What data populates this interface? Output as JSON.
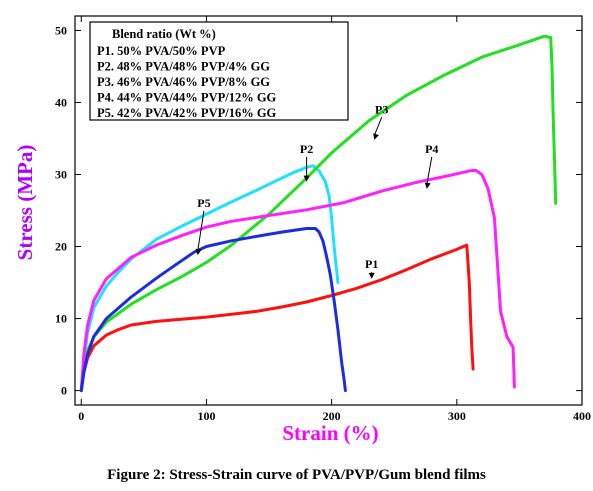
{
  "caption": "Figure 2: Stress-Strain curve of PVA/PVP/Gum blend films",
  "chart_data": {
    "type": "line",
    "xlabel": "Strain (%)",
    "ylabel": "Stress (MPa)",
    "xlabel_color": "#ff00ff",
    "ylabel_color": "#b000ff",
    "xlim": [
      -5,
      400
    ],
    "ylim": [
      -2,
      52
    ],
    "xticks": [
      0,
      100,
      200,
      300,
      400
    ],
    "yticks": [
      0,
      10,
      20,
      30,
      40,
      50
    ],
    "grid": false,
    "legend": {
      "title": "Blend ratio (Wt %)",
      "placement": "top-left",
      "entries": [
        "P1. 50% PVA/50% PVP",
        "P2. 48% PVA/48% PVP/4% GG",
        "P3. 46% PVA/46% PVP/8% GG",
        "P4. 44% PVA/44% PVP/12% GG",
        "P5. 42% PVA/42% PVP/16% GG"
      ]
    },
    "series": [
      {
        "name": "P1",
        "color": "#ff1010",
        "label_at": [
          232,
          17
        ],
        "arrow_to": [
          232,
          15.5
        ],
        "x": [
          0,
          2,
          5,
          10,
          20,
          30,
          40,
          60,
          80,
          100,
          120,
          140,
          160,
          180,
          200,
          220,
          240,
          260,
          280,
          300,
          308,
          310,
          311,
          312,
          313
        ],
        "y": [
          0,
          2.5,
          4.5,
          6.2,
          7.7,
          8.5,
          9.1,
          9.6,
          9.9,
          10.2,
          10.6,
          11.0,
          11.6,
          12.3,
          13.2,
          14.2,
          15.4,
          16.8,
          18.3,
          19.6,
          20.2,
          15,
          10,
          6,
          3
        ]
      },
      {
        "name": "P2",
        "color": "#20e0ff",
        "label_at": [
          180,
          33
        ],
        "arrow_to": [
          180,
          29
        ],
        "x": [
          0,
          2,
          5,
          10,
          20,
          30,
          40,
          60,
          80,
          100,
          120,
          140,
          160,
          170,
          180,
          185,
          190,
          195,
          198,
          200,
          202,
          205
        ],
        "y": [
          0,
          4,
          8,
          11.5,
          14.5,
          16.5,
          18.3,
          21,
          22.8,
          24.5,
          26.2,
          27.8,
          29.5,
          30.3,
          31,
          31.2,
          30.5,
          29,
          27,
          24,
          20,
          15
        ]
      },
      {
        "name": "P3",
        "color": "#20e020",
        "label_at": [
          240,
          38.5
        ],
        "arrow_to": [
          234,
          34.8
        ],
        "x": [
          0,
          2,
          5,
          10,
          20,
          40,
          60,
          80,
          100,
          120,
          150,
          180,
          200,
          230,
          260,
          290,
          320,
          350,
          370,
          375,
          376,
          377,
          378,
          379
        ],
        "y": [
          0,
          3,
          5.5,
          7.5,
          9.5,
          12,
          14,
          15.8,
          17.8,
          20.2,
          24.5,
          29.5,
          33,
          37.5,
          41,
          43.8,
          46.3,
          48,
          49.2,
          49,
          45,
          38,
          32,
          26
        ]
      },
      {
        "name": "P4",
        "color": "#ff20ff",
        "label_at": [
          280,
          33
        ],
        "arrow_to": [
          276,
          28
        ],
        "x": [
          0,
          2,
          5,
          10,
          20,
          40,
          60,
          80,
          100,
          120,
          150,
          180,
          210,
          240,
          270,
          290,
          300,
          310,
          315,
          320,
          325,
          330,
          335,
          340,
          345,
          346
        ],
        "y": [
          0,
          5,
          9,
          12.5,
          15.5,
          18.5,
          20.2,
          21.5,
          22.7,
          23.5,
          24.3,
          25.1,
          26.1,
          27.7,
          29,
          29.7,
          30.1,
          30.5,
          30.6,
          30,
          28,
          24,
          11,
          7.5,
          6,
          0.5
        ]
      },
      {
        "name": "P5",
        "color": "#1c2ce0",
        "label_at": [
          98,
          25.5
        ],
        "arrow_to": [
          93,
          18.8
        ],
        "x": [
          0,
          2,
          5,
          10,
          20,
          30,
          40,
          50,
          60,
          75,
          90,
          100,
          120,
          140,
          160,
          180,
          187,
          190,
          193,
          196,
          199,
          202,
          205,
          208,
          210,
          211
        ],
        "y": [
          0,
          2.5,
          5,
          7.5,
          10,
          11.5,
          13,
          14.3,
          15.6,
          17.4,
          19.2,
          20,
          20.8,
          21.4,
          22,
          22.5,
          22.5,
          22,
          20.8,
          18.6,
          16,
          12.5,
          8.5,
          4,
          1.5,
          0
        ]
      }
    ]
  }
}
